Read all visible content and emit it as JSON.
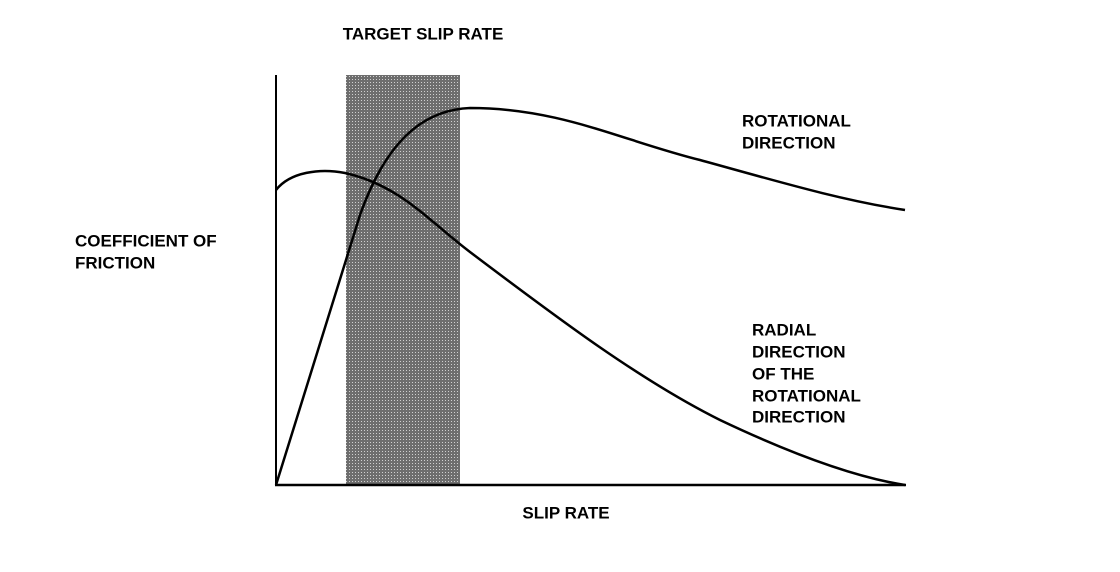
{
  "title": "TARGET SLIP RATE",
  "y_label": [
    "COEFFICIENT OF",
    "FRICTION"
  ],
  "x_label": "SLIP RATE",
  "curves": [
    {
      "label": [
        "ROTATIONAL",
        "DIRECTION"
      ]
    },
    {
      "label": [
        "RADIAL",
        "DIRECTION",
        "OF THE",
        "ROTATIONAL",
        "DIRECTION"
      ]
    }
  ]
}
